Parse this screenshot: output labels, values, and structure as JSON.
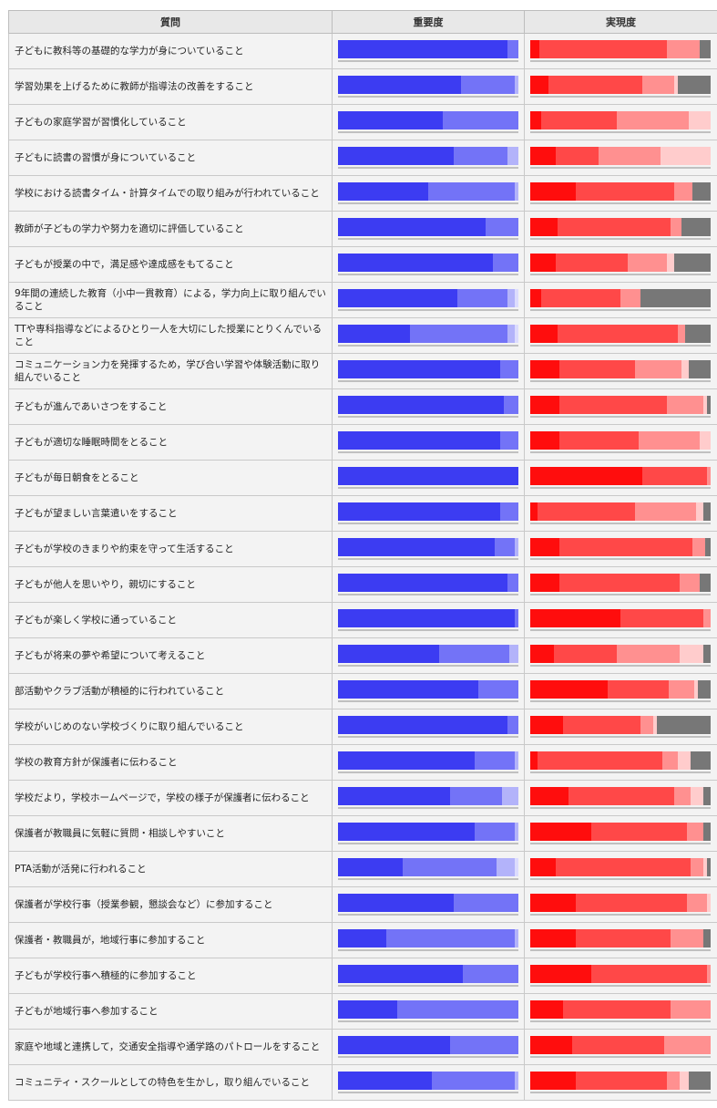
{
  "headers": {
    "question": "質問",
    "importance": "重要度",
    "realization": "実現度"
  },
  "colors": {
    "importance": [
      "#3c3cf2",
      "#7373f7",
      "#b3b3fa",
      "#dcdcfd"
    ],
    "realization": [
      "#ff0d0d",
      "#ff4848",
      "#ff9090",
      "#ffcccc",
      "#777777"
    ]
  },
  "chart_data": {
    "type": "bar",
    "orientation": "horizontal-stacked",
    "unit": "percent",
    "categories": [
      "子どもに教科等の基礎的な学力が身についていること",
      "学習効果を上げるために教師が指導法の改善をすること",
      "子どもの家庭学習が習慣化していること",
      "子どもに読書の習慣が身についていること",
      "学校における読書タイム・計算タイムでの取り組みが行われていること",
      "教師が子どもの学力や努力を適切に評価していること",
      "子どもが授業の中で，満足感や達成感をもてること",
      "9年間の連続した教育（小中一貫教育）による，学力向上に取り組んでいること",
      "TTや専科指導などによるひとり一人を大切にした授業にとりくんでいること",
      "コミュニケーション力を発揮するため，学び合い学習や体験活動に取り組んでいること",
      "子どもが進んであいさつをすること",
      "子どもが適切な睡眠時間をとること",
      "子どもが毎日朝食をとること",
      "子どもが望ましい言葉遣いをすること",
      "子どもが学校のきまりや約束を守って生活すること",
      "子どもが他人を思いやり，親切にすること",
      "子どもが楽しく学校に通っていること",
      "子どもが将来の夢や希望について考えること",
      "部活動やクラブ活動が積極的に行われていること",
      "学校がいじめのない学校づくりに取り組んでいること",
      "学校の教育方針が保護者に伝わること",
      "学校だより，学校ホームページで，学校の様子が保護者に伝わること",
      "保護者が教職員に気軽に質問・相談しやすいこと",
      "PTA活動が活発に行われること",
      "保護者が学校行事（授業参観，懇談会など）に参加すること",
      "保護者・教職員が，地域行事に参加すること",
      "子どもが学校行事へ積極的に参加すること",
      "子どもが地域行事へ参加すること",
      "家庭や地域と連携して，交通安全指導や通学路のパトロールをすること",
      "コミュニティ・スクールとしての特色を生かし，取り組んでいること"
    ],
    "importance": [
      [
        94,
        6,
        0,
        0
      ],
      [
        68,
        30,
        2,
        0
      ],
      [
        58,
        42,
        0,
        0
      ],
      [
        64,
        30,
        6,
        0
      ],
      [
        50,
        48,
        2,
        0
      ],
      [
        82,
        18,
        0,
        0
      ],
      [
        86,
        14,
        0,
        0
      ],
      [
        66,
        28,
        4,
        2
      ],
      [
        40,
        54,
        4,
        2
      ],
      [
        90,
        10,
        0,
        0
      ],
      [
        92,
        8,
        0,
        0
      ],
      [
        90,
        10,
        0,
        0
      ],
      [
        100,
        0,
        0,
        0
      ],
      [
        90,
        10,
        0,
        0
      ],
      [
        87,
        11,
        2,
        0
      ],
      [
        94,
        6,
        0,
        0
      ],
      [
        98,
        2,
        0,
        0
      ],
      [
        56,
        39,
        5,
        0
      ],
      [
        78,
        22,
        0,
        0
      ],
      [
        94,
        6,
        0,
        0
      ],
      [
        76,
        22,
        2,
        0
      ],
      [
        62,
        29,
        9,
        0
      ],
      [
        76,
        22,
        2,
        0
      ],
      [
        36,
        52,
        10,
        2
      ],
      [
        64,
        36,
        0,
        0
      ],
      [
        27,
        71,
        2,
        0
      ],
      [
        69,
        31,
        0,
        0
      ],
      [
        33,
        67,
        0,
        0
      ],
      [
        62,
        38,
        0,
        0
      ],
      [
        52,
        46,
        2,
        0
      ]
    ],
    "realization": [
      [
        5,
        71,
        18,
        0,
        6
      ],
      [
        10,
        52,
        18,
        2,
        18
      ],
      [
        6,
        42,
        40,
        12,
        0
      ],
      [
        14,
        24,
        34,
        28,
        0
      ],
      [
        25,
        55,
        10,
        0,
        10
      ],
      [
        15,
        63,
        6,
        0,
        16
      ],
      [
        14,
        40,
        22,
        4,
        20
      ],
      [
        6,
        44,
        11,
        0,
        39
      ],
      [
        15,
        67,
        4,
        0,
        14
      ],
      [
        16,
        42,
        26,
        4,
        12
      ],
      [
        16,
        60,
        20,
        2,
        2
      ],
      [
        16,
        44,
        34,
        6,
        0
      ],
      [
        62,
        36,
        2,
        0,
        0
      ],
      [
        4,
        54,
        34,
        4,
        4
      ],
      [
        16,
        74,
        7,
        0,
        3
      ],
      [
        16,
        67,
        11,
        0,
        6
      ],
      [
        50,
        46,
        4,
        0,
        0
      ],
      [
        13,
        35,
        35,
        13,
        4
      ],
      [
        43,
        34,
        14,
        2,
        7
      ],
      [
        18,
        43,
        7,
        2,
        30
      ],
      [
        4,
        69,
        9,
        7,
        11
      ],
      [
        21,
        59,
        9,
        7,
        4
      ],
      [
        34,
        53,
        9,
        0,
        4
      ],
      [
        14,
        75,
        7,
        2,
        2
      ],
      [
        25,
        62,
        11,
        2,
        0
      ],
      [
        25,
        53,
        18,
        0,
        4
      ],
      [
        34,
        64,
        2,
        0,
        0
      ],
      [
        18,
        60,
        22,
        0,
        0
      ],
      [
        23,
        51,
        26,
        0,
        0
      ],
      [
        25,
        51,
        7,
        5,
        12
      ]
    ]
  }
}
